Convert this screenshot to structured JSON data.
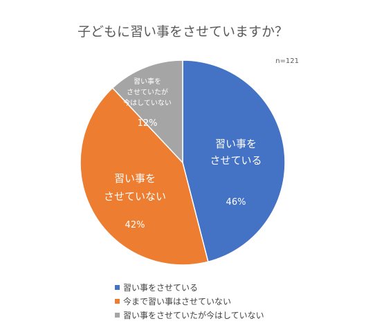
{
  "chart_data": {
    "type": "pie",
    "title": "子どもに習い事をさせていますか？",
    "note": "n=121",
    "slices": [
      {
        "legend": "習い事をさせている",
        "label_lines": [
          "習い事を",
          "させている"
        ],
        "value": 46,
        "value_label": "46%",
        "color": "#4472C4"
      },
      {
        "legend": "今まで習い事はさせていない",
        "label_lines": [
          "習い事を",
          "させていない"
        ],
        "value": 42,
        "value_label": "42%",
        "color": "#ED7D31"
      },
      {
        "legend": "習い事をさせていたが今はしていない",
        "label_lines": [
          "習い事を",
          "させていたが",
          "今はしていない"
        ],
        "value": 12,
        "value_label": "12%",
        "color": "#A5A5A5"
      }
    ],
    "legend_position": "bottom"
  }
}
